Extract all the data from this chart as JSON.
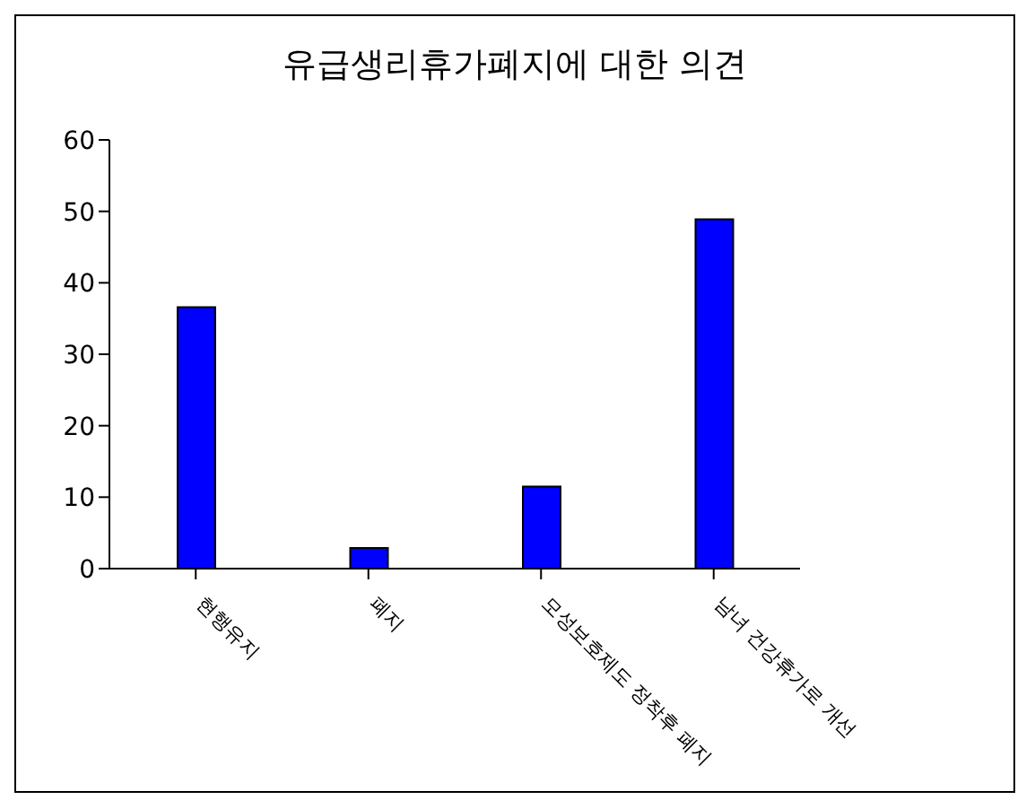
{
  "chart_data": {
    "type": "bar",
    "title": "유급생리휴가폐지에 대한 의견",
    "categories": [
      "현행유지",
      "폐지",
      "모성보호제도 정착후 폐지",
      "남녀 건강휴가로 개선"
    ],
    "values": [
      36.6,
      2.9,
      11.5,
      48.9
    ],
    "color": "#0000ff",
    "ylim": [
      0,
      60
    ],
    "yticks": [
      0,
      10,
      20,
      30,
      40,
      50,
      60
    ],
    "grid": false,
    "legend": false
  }
}
